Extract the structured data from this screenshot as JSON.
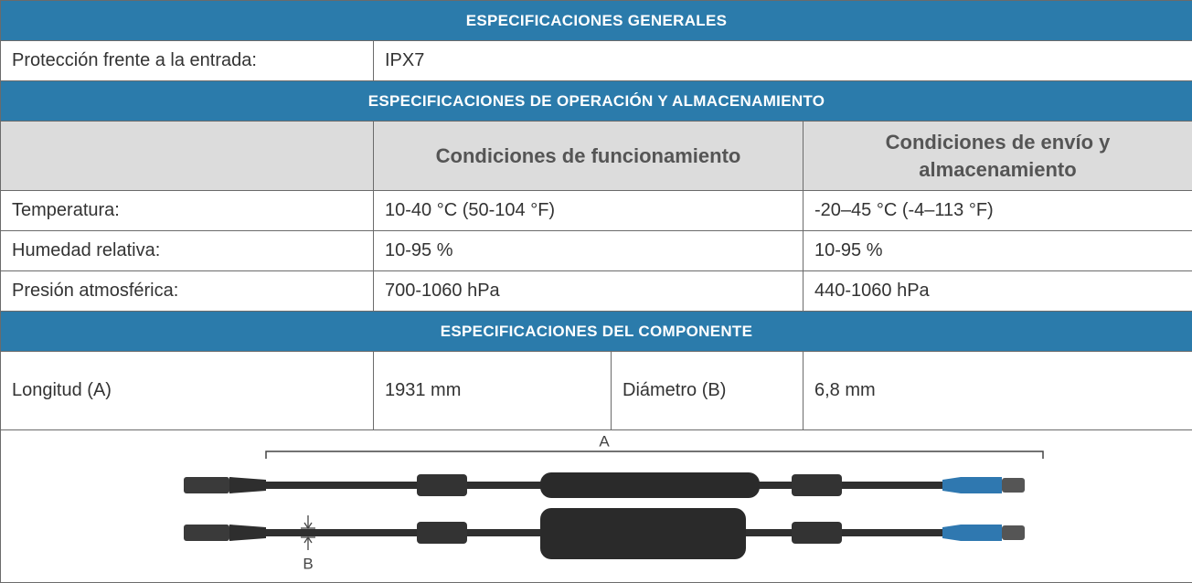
{
  "general": {
    "title": "ESPECIFICACIONES GENERALES",
    "rows": [
      [
        "Protección frente a la entrada:",
        "IPX7"
      ]
    ]
  },
  "operation": {
    "title": "ESPECIFICACIONES DE OPERACIÓN Y ALMACENAMIENTO",
    "headers": [
      "Condiciones de funcionamiento",
      "Condiciones de envío y almacenamiento"
    ],
    "rows": [
      [
        "Temperatura:",
        "10-40 °C (50-104 °F)",
        "-20–45 °C (-4–113 °F)"
      ],
      [
        "Humedad relativa:",
        "10-95 %",
        "10-95 %"
      ],
      [
        "Presión atmosférica:",
        "700-1060 hPa",
        "440-1060 hPa"
      ]
    ]
  },
  "component": {
    "title": "ESPECIFICACIONES DEL COMPONENTE",
    "row": [
      "Longitud (A)",
      "1931 mm",
      "Diámetro (B)",
      "6,8 mm"
    ]
  },
  "figure": {
    "labels": [
      "A",
      "B"
    ]
  }
}
